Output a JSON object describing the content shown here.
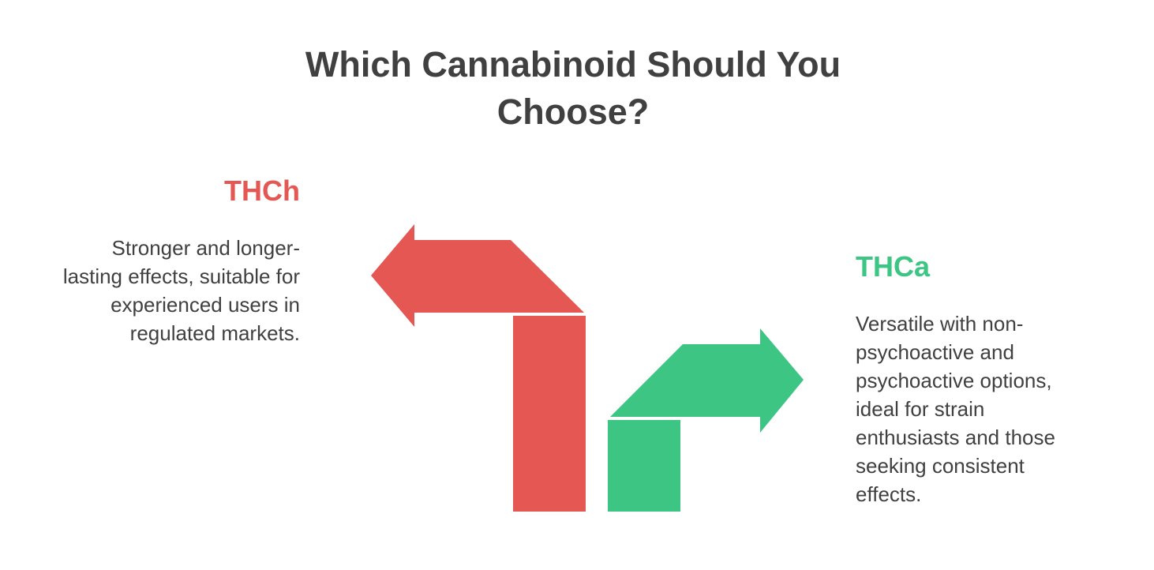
{
  "title": "Which Cannabinoid Should You Choose?",
  "colors": {
    "title": "#404040",
    "body_text": "#404040",
    "thch": "#E45753",
    "thca": "#3CC583",
    "background": "#FFFFFF"
  },
  "options": {
    "left": {
      "name": "THCh",
      "description": "Stronger and longer-lasting effects, suitable for experienced users in regulated markets.",
      "arrow_direction": "up-left",
      "color_key": "thch"
    },
    "right": {
      "name": "THCa",
      "description": "Versatile with non-psychoactive and psychoactive options, ideal for strain enthusiasts and those seeking consistent effects.",
      "arrow_direction": "up-right",
      "color_key": "thca"
    }
  }
}
